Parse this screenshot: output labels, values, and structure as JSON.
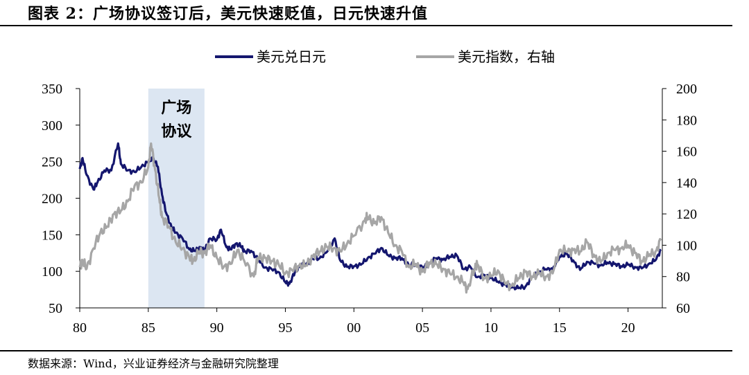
{
  "title": "图表 2：广场协议签订后，美元快速贬值，日元快速升值",
  "source": "数据来源：Wind，兴业证券经济与金融研究院整理",
  "chart_data": {
    "type": "line",
    "legend": {
      "placement": "top-center",
      "items": [
        {
          "name": "美元兑日元",
          "color": "#14166e"
        },
        {
          "name": "美元指数，右轴",
          "color": "#a6a6a6"
        }
      ]
    },
    "x_ticks": [
      "80",
      "85",
      "90",
      "95",
      "00",
      "05",
      "10",
      "15",
      "20"
    ],
    "xlim": [
      1980,
      2022.5
    ],
    "y_left": {
      "lim": [
        50,
        350
      ],
      "ticks": [
        "350",
        "300",
        "250",
        "200",
        "150",
        "100",
        "50"
      ]
    },
    "y_right": {
      "lim": [
        60,
        200
      ],
      "ticks": [
        "200",
        "180",
        "160",
        "140",
        "120",
        "100",
        "80",
        "60"
      ]
    },
    "shaded_region": {
      "x": [
        1985,
        1989.1
      ],
      "label_line1": "广场",
      "label_line2": "协议",
      "color": "#dce6f2"
    },
    "series": [
      {
        "name": "美元兑日元",
        "axis": "left",
        "color": "#14166e",
        "points": [
          [
            1980,
            240
          ],
          [
            1980.2,
            255
          ],
          [
            1980.5,
            232
          ],
          [
            1981,
            212
          ],
          [
            1981.3,
            222
          ],
          [
            1981.8,
            238
          ],
          [
            1982.3,
            238
          ],
          [
            1982.8,
            275
          ],
          [
            1983,
            247
          ],
          [
            1983.5,
            238
          ],
          [
            1984,
            236
          ],
          [
            1984.5,
            243
          ],
          [
            1985,
            250
          ],
          [
            1985.3,
            256
          ],
          [
            1985.7,
            243
          ],
          [
            1986,
            205
          ],
          [
            1986.3,
            180
          ],
          [
            1986.7,
            160
          ],
          [
            1987,
            153
          ],
          [
            1987.5,
            145
          ],
          [
            1988,
            130
          ],
          [
            1988.4,
            128
          ],
          [
            1988.8,
            133
          ],
          [
            1989.1,
            128
          ],
          [
            1989.5,
            145
          ],
          [
            1990,
            143
          ],
          [
            1990.3,
            157
          ],
          [
            1990.7,
            133
          ],
          [
            1991,
            130
          ],
          [
            1991.4,
            138
          ],
          [
            1991.8,
            134
          ],
          [
            1992,
            127
          ],
          [
            1992.5,
            128
          ],
          [
            1993,
            117
          ],
          [
            1993.5,
            105
          ],
          [
            1994,
            103
          ],
          [
            1994.5,
            99
          ],
          [
            1995,
            85
          ],
          [
            1995.3,
            83
          ],
          [
            1995.7,
            99
          ],
          [
            1996,
            106
          ],
          [
            1996.5,
            110
          ],
          [
            1997,
            117
          ],
          [
            1997.5,
            118
          ],
          [
            1998,
            126
          ],
          [
            1998.6,
            145
          ],
          [
            1999,
            115
          ],
          [
            1999.5,
            106
          ],
          [
            2000,
            107
          ],
          [
            2000.5,
            109
          ],
          [
            2001,
            118
          ],
          [
            2001.5,
            124
          ],
          [
            2002,
            132
          ],
          [
            2002.5,
            122
          ],
          [
            2003,
            118
          ],
          [
            2003.5,
            118
          ],
          [
            2004,
            108
          ],
          [
            2004.5,
            110
          ],
          [
            2005,
            105
          ],
          [
            2005.5,
            110
          ],
          [
            2006,
            118
          ],
          [
            2006.5,
            116
          ],
          [
            2007,
            120
          ],
          [
            2007.5,
            122
          ],
          [
            2008,
            103
          ],
          [
            2008.5,
            106
          ],
          [
            2009,
            92
          ],
          [
            2009.5,
            95
          ],
          [
            2010,
            91
          ],
          [
            2010.5,
            86
          ],
          [
            2011,
            82
          ],
          [
            2011.5,
            79
          ],
          [
            2012,
            77
          ],
          [
            2012.5,
            79
          ],
          [
            2013,
            92
          ],
          [
            2013.5,
            99
          ],
          [
            2014,
            103
          ],
          [
            2014.5,
            103
          ],
          [
            2015,
            120
          ],
          [
            2015.5,
            124
          ],
          [
            2016,
            115
          ],
          [
            2016.5,
            102
          ],
          [
            2017,
            113
          ],
          [
            2017.5,
            111
          ],
          [
            2018,
            108
          ],
          [
            2018.5,
            112
          ],
          [
            2019,
            110
          ],
          [
            2019.5,
            107
          ],
          [
            2020,
            109
          ],
          [
            2020.5,
            106
          ],
          [
            2021,
            104
          ],
          [
            2021.5,
            110
          ],
          [
            2022,
            115
          ],
          [
            2022.4,
            130
          ]
        ]
      },
      {
        "name": "美元指数，右轴",
        "axis": "right",
        "color": "#a6a6a6",
        "points": [
          [
            1980,
            86
          ],
          [
            1980.2,
            90
          ],
          [
            1980.5,
            85
          ],
          [
            1981,
            98
          ],
          [
            1981.5,
            108
          ],
          [
            1982,
            112
          ],
          [
            1982.5,
            120
          ],
          [
            1983,
            122
          ],
          [
            1983.5,
            128
          ],
          [
            1984,
            138
          ],
          [
            1984.5,
            140
          ],
          [
            1985,
            150
          ],
          [
            1985.2,
            165
          ],
          [
            1985.5,
            148
          ],
          [
            1985.8,
            130
          ],
          [
            1986,
            118
          ],
          [
            1986.5,
            112
          ],
          [
            1987,
            102
          ],
          [
            1987.5,
            98
          ],
          [
            1988,
            92
          ],
          [
            1988.3,
            90
          ],
          [
            1988.7,
            96
          ],
          [
            1989.1,
            95
          ],
          [
            1989.5,
            100
          ],
          [
            1990,
            92
          ],
          [
            1990.5,
            86
          ],
          [
            1991,
            88
          ],
          [
            1991.5,
            97
          ],
          [
            1992,
            90
          ],
          [
            1992.7,
            80
          ],
          [
            1993,
            92
          ],
          [
            1993.5,
            92
          ],
          [
            1994,
            90
          ],
          [
            1994.5,
            88
          ],
          [
            1995,
            82
          ],
          [
            1995.5,
            84
          ],
          [
            1996,
            87
          ],
          [
            1996.5,
            87
          ],
          [
            1997,
            93
          ],
          [
            1997.5,
            96
          ],
          [
            1998,
            99
          ],
          [
            1998.5,
            98
          ],
          [
            1999,
            96
          ],
          [
            1999.5,
            101
          ],
          [
            2000,
            106
          ],
          [
            2000.8,
            116
          ],
          [
            2001,
            118
          ],
          [
            2001.5,
            114
          ],
          [
            2002,
            118
          ],
          [
            2002.5,
            108
          ],
          [
            2003,
            100
          ],
          [
            2003.5,
            96
          ],
          [
            2004,
            86
          ],
          [
            2004.5,
            88
          ],
          [
            2005,
            83
          ],
          [
            2005.5,
            89
          ],
          [
            2006,
            88
          ],
          [
            2006.5,
            85
          ],
          [
            2007,
            82
          ],
          [
            2007.5,
            80
          ],
          [
            2008,
            76
          ],
          [
            2008.3,
            72
          ],
          [
            2008.8,
            85
          ],
          [
            2009,
            88
          ],
          [
            2009.5,
            79
          ],
          [
            2010,
            80
          ],
          [
            2010.5,
            84
          ],
          [
            2011,
            76
          ],
          [
            2011.5,
            74
          ],
          [
            2012,
            79
          ],
          [
            2012.5,
            83
          ],
          [
            2013,
            80
          ],
          [
            2013.5,
            82
          ],
          [
            2014,
            80
          ],
          [
            2014.5,
            82
          ],
          [
            2015,
            97
          ],
          [
            2015.5,
            96
          ],
          [
            2016,
            97
          ],
          [
            2016.5,
            96
          ],
          [
            2017,
            102
          ],
          [
            2017.5,
            94
          ],
          [
            2018,
            89
          ],
          [
            2018.5,
            95
          ],
          [
            2019,
            97
          ],
          [
            2019.5,
            98
          ],
          [
            2020,
            100
          ],
          [
            2020.5,
            95
          ],
          [
            2021,
            90
          ],
          [
            2021.5,
            93
          ],
          [
            2022,
            96
          ],
          [
            2022.4,
            103
          ]
        ]
      }
    ]
  }
}
